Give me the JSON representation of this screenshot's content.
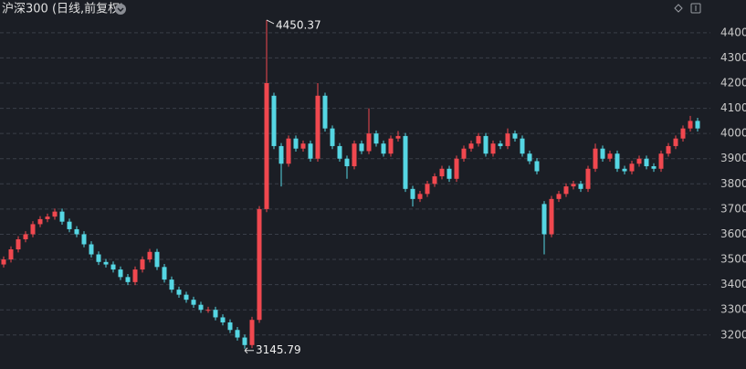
{
  "chart_data": {
    "type": "candlestick",
    "title": "沪深300 (日线,前复权)",
    "up_color": "#f0484f",
    "down_color": "#55d6e3",
    "grid": true,
    "ylim": [
      3065,
      4530
    ],
    "yticks": [
      3200,
      3300,
      3400,
      3500,
      3600,
      3700,
      3800,
      3900,
      4000,
      4100,
      4200,
      4300,
      4400
    ],
    "open": [
      3480,
      3500,
      3540,
      3580,
      3600,
      3640,
      3660,
      3670,
      3690,
      3650,
      3620,
      3600,
      3560,
      3520,
      3490,
      3480,
      3460,
      3430,
      3410,
      3460,
      3500,
      3530,
      3470,
      3420,
      3380,
      3360,
      3340,
      3320,
      3300,
      3300,
      3270,
      3250,
      3220,
      3190,
      3160,
      3260,
      3700,
      4150,
      3950,
      3880,
      3980,
      3940,
      3960,
      3900,
      4150,
      4020,
      3950,
      3900,
      3870,
      3960,
      3930,
      4000,
      3960,
      3920,
      3980,
      3990,
      3780,
      3740,
      3760,
      3800,
      3830,
      3860,
      3820,
      3900,
      3940,
      3960,
      3990,
      3920,
      3960,
      3950,
      4000,
      3980,
      3920,
      3890,
      3720,
      3600,
      3740,
      3760,
      3790,
      3800,
      3780,
      3860,
      3940,
      3900,
      3920,
      3860,
      3850,
      3880,
      3900,
      3870,
      3860,
      3920,
      3950,
      3980,
      4020,
      4050
    ],
    "high": [
      3512,
      3552,
      3592,
      3612,
      3652,
      3672,
      3682,
      3702,
      3702,
      3662,
      3632,
      3612,
      3572,
      3532,
      3502,
      3492,
      3472,
      3442,
      3472,
      3512,
      3542,
      3542,
      3482,
      3432,
      3392,
      3372,
      3352,
      3332,
      3312,
      3312,
      3282,
      3262,
      3232,
      3202,
      3272,
      3712,
      4450.37,
      4162,
      3962,
      3992,
      3992,
      3972,
      3972,
      4200,
      4162,
      4032,
      3962,
      3912,
      3972,
      3972,
      4100,
      4012,
      3972,
      3992,
      4010,
      4002,
      3792,
      3772,
      3812,
      3842,
      3872,
      3872,
      3912,
      3952,
      3972,
      4002,
      4002,
      3972,
      3972,
      4020,
      4012,
      3992,
      3932,
      3902,
      3732,
      3752,
      3772,
      3802,
      3812,
      3812,
      3872,
      3960,
      3952,
      3932,
      3932,
      3872,
      3892,
      3912,
      3912,
      3882,
      3932,
      3962,
      3992,
      4032,
      4070,
      4062
    ],
    "low": [
      3468,
      3488,
      3528,
      3568,
      3588,
      3628,
      3648,
      3658,
      3638,
      3608,
      3588,
      3548,
      3508,
      3478,
      3468,
      3448,
      3418,
      3398,
      3398,
      3448,
      3488,
      3458,
      3408,
      3368,
      3348,
      3328,
      3308,
      3288,
      3288,
      3258,
      3238,
      3208,
      3178,
      3145.79,
      3148,
      3248,
      3688,
      3938,
      3790,
      3868,
      3928,
      3928,
      3888,
      3888,
      4008,
      3938,
      3888,
      3820,
      3858,
      3918,
      3918,
      3948,
      3908,
      3908,
      3968,
      3768,
      3710,
      3728,
      3748,
      3788,
      3818,
      3808,
      3808,
      3888,
      3928,
      3948,
      3908,
      3908,
      3938,
      3938,
      3968,
      3908,
      3878,
      3838,
      3520,
      3588,
      3728,
      3748,
      3778,
      3768,
      3768,
      3848,
      3888,
      3888,
      3848,
      3838,
      3838,
      3868,
      3858,
      3848,
      3848,
      3908,
      3938,
      3968,
      4008,
      4008
    ],
    "close": [
      3500,
      3540,
      3580,
      3600,
      3640,
      3660,
      3670,
      3690,
      3650,
      3620,
      3600,
      3560,
      3520,
      3490,
      3480,
      3460,
      3430,
      3410,
      3460,
      3500,
      3530,
      3470,
      3420,
      3380,
      3360,
      3340,
      3320,
      3300,
      3300,
      3270,
      3250,
      3220,
      3190,
      3160,
      3260,
      3700,
      4200,
      3950,
      3880,
      3980,
      3940,
      3960,
      3900,
      4150,
      4020,
      3950,
      3900,
      3870,
      3960,
      3930,
      4000,
      3960,
      3920,
      3980,
      3990,
      3780,
      3740,
      3760,
      3800,
      3830,
      3860,
      3820,
      3900,
      3940,
      3960,
      3990,
      3920,
      3960,
      3950,
      4000,
      3980,
      3920,
      3890,
      3850,
      3600,
      3740,
      3760,
      3790,
      3800,
      3780,
      3860,
      3940,
      3900,
      3920,
      3860,
      3850,
      3880,
      3900,
      3870,
      3860,
      3920,
      3950,
      3980,
      4020,
      4050,
      4020
    ]
  }
}
